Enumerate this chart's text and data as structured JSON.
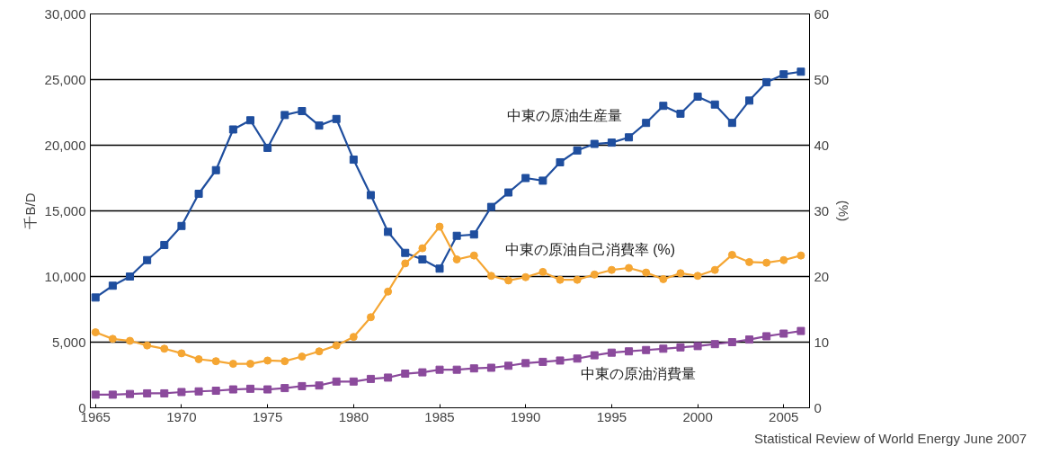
{
  "chart_data": {
    "type": "line",
    "x": [
      1965,
      1966,
      1967,
      1968,
      1969,
      1970,
      1971,
      1972,
      1973,
      1974,
      1975,
      1976,
      1977,
      1978,
      1979,
      1980,
      1981,
      1982,
      1983,
      1984,
      1985,
      1986,
      1987,
      1988,
      1989,
      1990,
      1991,
      1992,
      1993,
      1994,
      1995,
      1996,
      1997,
      1998,
      1999,
      2000,
      2001,
      2002,
      2003,
      2004,
      2005,
      2006
    ],
    "series": [
      {
        "name": "中東の原油生産量",
        "color": "#1f4e9e",
        "marker": "square",
        "values": [
          8400,
          9300,
          10000,
          11250,
          12400,
          13850,
          16300,
          18100,
          21200,
          21900,
          19800,
          22300,
          22600,
          21500,
          22000,
          18900,
          16200,
          13400,
          11800,
          11300,
          10600,
          13100,
          13200,
          15300,
          16400,
          17500,
          17300,
          18700,
          19600,
          20100,
          20200,
          20600,
          21700,
          23000,
          22400,
          23700,
          23100,
          21700,
          23400,
          24800,
          25400,
          25600
        ]
      },
      {
        "name": "中東の原油自己消費率 (%)",
        "color": "#f5a633",
        "marker": "circle",
        "axis": "y2",
        "values": [
          11.5,
          10.5,
          10.2,
          9.5,
          9.0,
          8.3,
          7.4,
          7.1,
          6.7,
          6.7,
          7.2,
          7.1,
          7.8,
          8.6,
          9.5,
          10.8,
          13.8,
          17.7,
          22.0,
          24.3,
          27.6,
          22.6,
          23.2,
          20.1,
          19.4,
          19.9,
          20.7,
          19.5,
          19.5,
          20.3,
          21.0,
          21.3,
          20.6,
          19.6,
          20.5,
          20.1,
          21.0,
          23.3,
          22.2,
          22.1,
          22.5,
          23.2
        ]
      },
      {
        "name": "中東の原油消費量",
        "color": "#8b4a9c",
        "marker": "square",
        "values": [
          1000,
          1000,
          1050,
          1100,
          1100,
          1200,
          1250,
          1300,
          1400,
          1450,
          1400,
          1500,
          1650,
          1700,
          2000,
          2000,
          2200,
          2300,
          2600,
          2700,
          2900,
          2900,
          3000,
          3050,
          3200,
          3400,
          3500,
          3600,
          3750,
          4000,
          4200,
          4300,
          4400,
          4500,
          4600,
          4700,
          4850,
          5000,
          5200,
          5450,
          5650,
          5850
        ]
      }
    ],
    "xlim": [
      1964.7,
      2006.5
    ],
    "xticks": [
      1965,
      1970,
      1975,
      1980,
      1985,
      1990,
      1995,
      2000,
      2005
    ],
    "ylim": [
      0,
      30000
    ],
    "yticks": [
      {
        "value": 0,
        "label": "0"
      },
      {
        "value": 5000,
        "label": "5,000"
      },
      {
        "value": 10000,
        "label": "10,000"
      },
      {
        "value": 15000,
        "label": "15,000"
      },
      {
        "value": 20000,
        "label": "20,000"
      },
      {
        "value": 25000,
        "label": "25,000"
      },
      {
        "value": 30000,
        "label": "30,000"
      }
    ],
    "y2lim": [
      0,
      60
    ],
    "y2ticks": [
      0,
      10,
      20,
      30,
      40,
      50,
      60
    ],
    "ylabel": "千B/D",
    "y2label": "(%)",
    "grid": "y",
    "line_style": "solid",
    "annotations": [
      "Statistical Review of World Energy   June 2007"
    ]
  }
}
